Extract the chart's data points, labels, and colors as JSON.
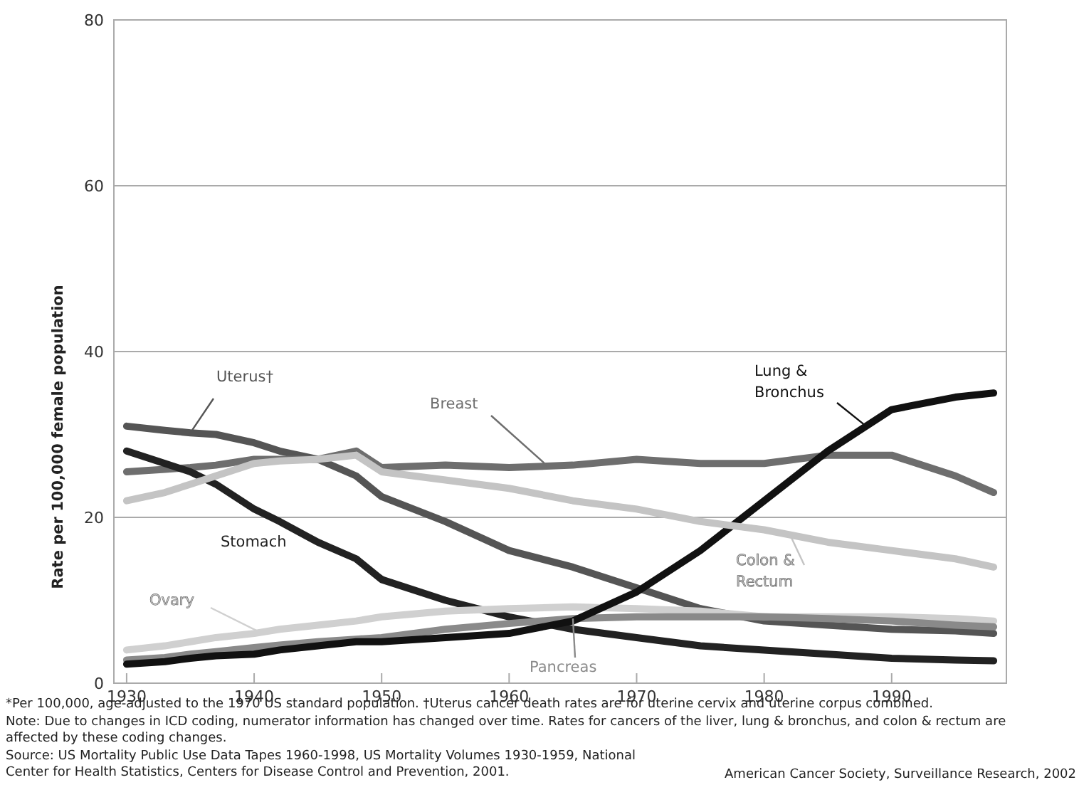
{
  "chart_data": {
    "type": "line",
    "ylabel": "Rate per 100,000 female population",
    "xlim": [
      1929,
      1999
    ],
    "xticks": [
      1930,
      1940,
      1950,
      1960,
      1970,
      1980,
      1990
    ],
    "ylim": [
      0,
      80
    ],
    "yticks": [
      0,
      20,
      40,
      60,
      80
    ],
    "grid": "y",
    "legend": false,
    "line_style": "solid",
    "marker": "none",
    "x": [
      1930,
      1933,
      1935,
      1937,
      1940,
      1942,
      1945,
      1948,
      1950,
      1955,
      1960,
      1965,
      1970,
      1975,
      1980,
      1985,
      1990,
      1995,
      1998
    ],
    "series": [
      {
        "name": "Uterus†",
        "color": "#555555",
        "values": [
          31,
          30.5,
          30.2,
          30,
          29,
          28,
          27,
          25,
          22.5,
          19.5,
          16,
          14,
          11.5,
          9,
          7.5,
          7,
          6.5,
          6.3,
          6
        ]
      },
      {
        "name": "Breast",
        "color": "#6e6e6e",
        "values": [
          25.5,
          25.8,
          26,
          26.3,
          27,
          27,
          27,
          28,
          26,
          26.3,
          26,
          26.3,
          27,
          26.5,
          26.5,
          27.5,
          27.5,
          25,
          23
        ]
      },
      {
        "name": "Stomach",
        "color": "#222222",
        "values": [
          28,
          26.5,
          25.5,
          24,
          21,
          19.5,
          17,
          15,
          12.5,
          10,
          8,
          6.5,
          5.5,
          4.5,
          4,
          3.5,
          3,
          2.8,
          2.7
        ]
      },
      {
        "name": "Ovary",
        "color": "#d0d0d0",
        "values": [
          4,
          4.5,
          5,
          5.5,
          6,
          6.5,
          7,
          7.5,
          8,
          8.7,
          9,
          9.2,
          9,
          8.7,
          8,
          8,
          8,
          7.8,
          7.5
        ]
      },
      {
        "name": "Pancreas",
        "color": "#8a8a8a",
        "values": [
          2.8,
          3.1,
          3.5,
          3.8,
          4.3,
          4.6,
          5,
          5.3,
          5.5,
          6.5,
          7.2,
          7.8,
          8,
          8,
          8,
          7.8,
          7.5,
          7,
          6.8
        ]
      },
      {
        "name": "Lung &\nBronchus",
        "color": "#111111",
        "values": [
          2.3,
          2.6,
          3,
          3.3,
          3.5,
          4,
          4.5,
          5,
          5,
          5.5,
          6,
          7.5,
          11,
          16,
          22,
          28,
          33,
          34.5,
          35
        ]
      },
      {
        "name": "Colon &\nRectum",
        "color": "#c4c4c4",
        "values": [
          22,
          23,
          24,
          25,
          26.5,
          26.8,
          27,
          27.5,
          25.5,
          24.5,
          23.5,
          22,
          21,
          19.5,
          18.5,
          17,
          16,
          15,
          14
        ]
      }
    ],
    "annotations": [
      "*Per 100,000, age-adjusted to the 1970 US standard population. †Uterus cancer death rates are for uterine cervix and uterine corpus combined.",
      "Note: Due to changes in ICD coding, numerator information has changed over time. Rates for cancers of the liver, lung & bronchus, and colon & rectum are affected by these coding changes.",
      "Source: US Mortality Public Use Data Tapes 1960-1998, US Mortality Volumes 1930-1959, National Center for Health Statistics, Centers for Disease Control and Prevention, 2001.",
      "American Cancer Society, Surveillance Research, 2002"
    ]
  }
}
